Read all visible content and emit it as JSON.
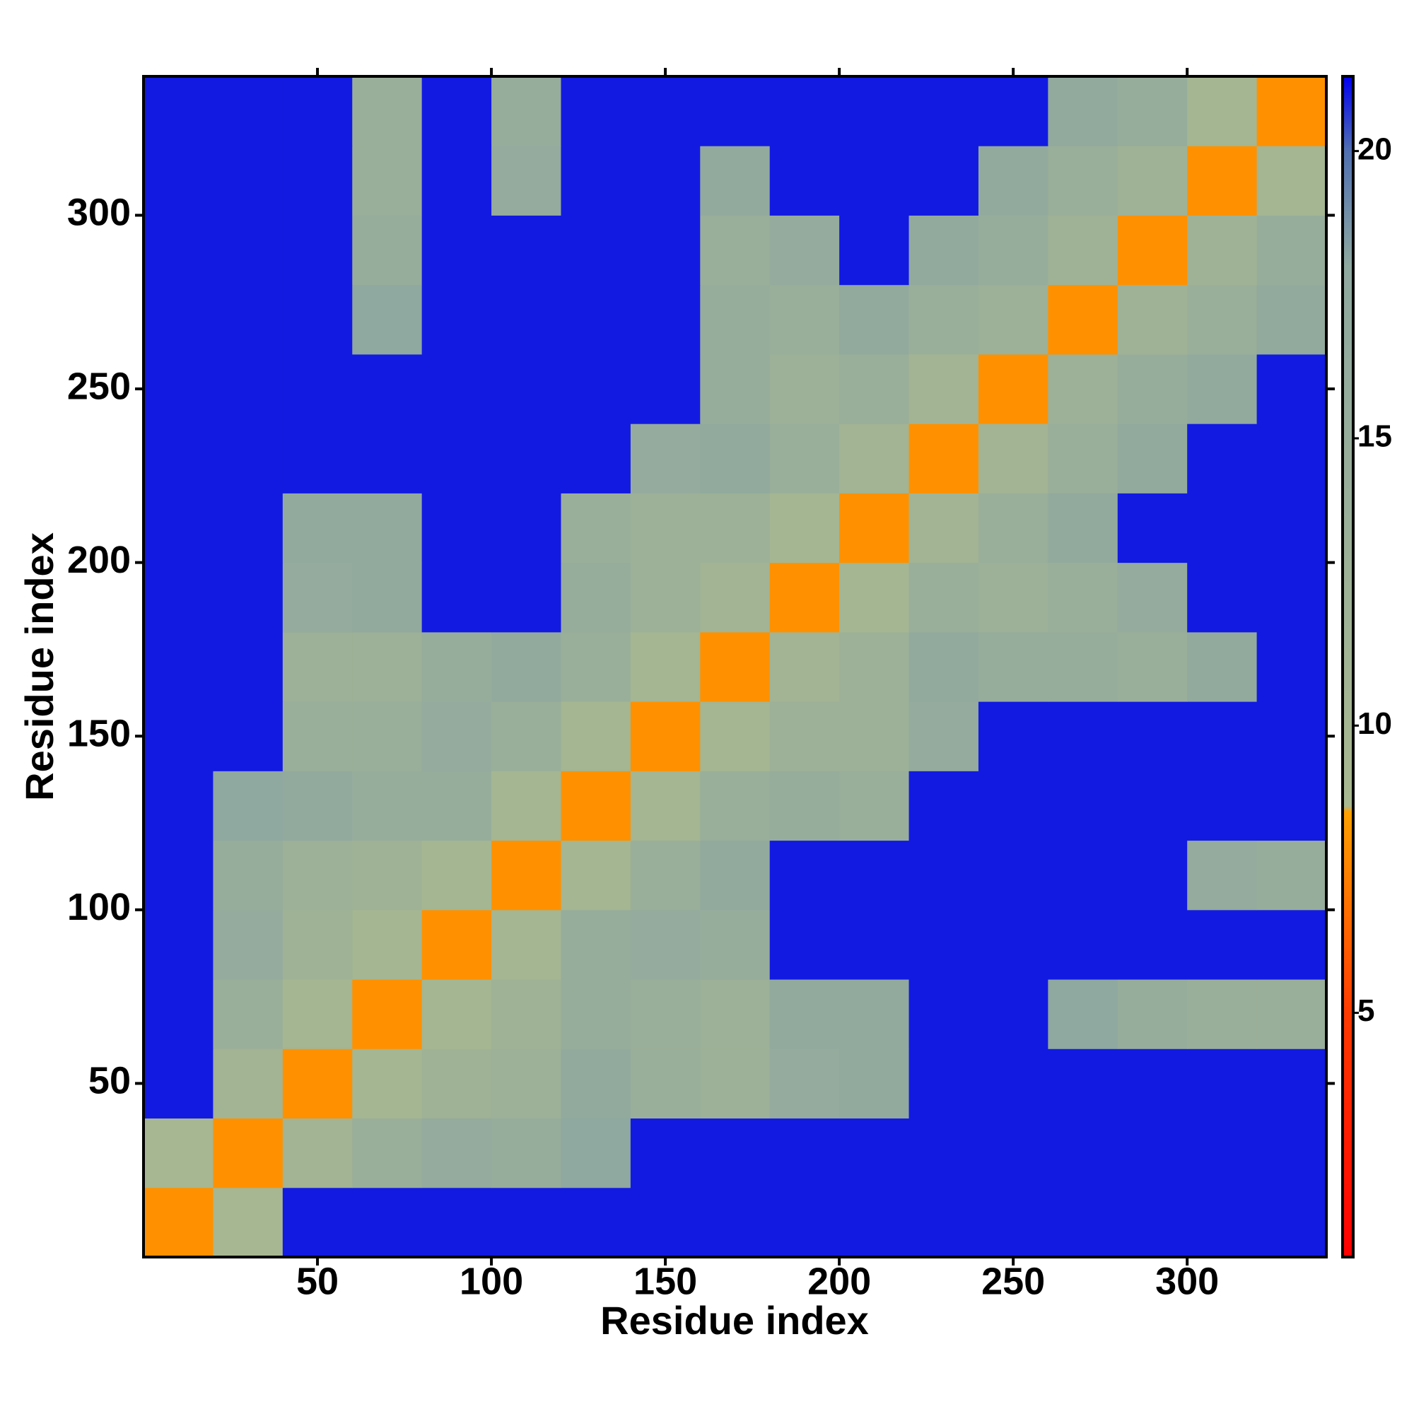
{
  "chart_data": {
    "type": "heatmap",
    "x_label": "Residue index",
    "y_label": "Residue index",
    "x_edges": [
      0,
      20,
      40,
      60,
      80,
      100,
      120,
      140,
      160,
      180,
      200,
      220,
      240,
      260,
      280,
      300,
      320,
      340
    ],
    "y_edges": [
      0,
      20,
      40,
      60,
      80,
      100,
      120,
      140,
      160,
      180,
      200,
      220,
      240,
      260,
      280,
      300,
      320,
      340
    ],
    "z": [
      [
        8,
        9,
        21,
        21,
        21,
        21,
        21,
        21,
        21,
        21,
        21,
        21,
        21,
        21,
        21,
        21,
        21
      ],
      [
        9,
        8,
        11,
        14,
        16,
        15,
        18,
        21,
        21,
        21,
        21,
        21,
        21,
        21,
        21,
        21,
        21
      ],
      [
        21,
        11,
        8,
        10,
        12,
        13,
        17,
        14,
        13,
        16,
        17,
        21,
        21,
        21,
        21,
        21,
        21
      ],
      [
        21,
        14,
        10,
        8,
        10,
        12,
        15,
        14,
        13,
        17,
        17,
        21,
        21,
        18,
        15,
        14,
        14
      ],
      [
        21,
        16,
        12,
        10,
        8,
        10,
        15,
        16,
        15,
        21,
        21,
        21,
        21,
        21,
        21,
        21,
        21
      ],
      [
        21,
        15,
        13,
        12,
        10,
        8,
        10,
        14,
        17,
        21,
        21,
        21,
        21,
        21,
        21,
        16,
        15
      ],
      [
        21,
        18,
        17,
        15,
        15,
        10,
        8,
        10,
        14,
        15,
        14,
        21,
        21,
        21,
        21,
        21,
        21
      ],
      [
        21,
        21,
        14,
        14,
        16,
        14,
        10,
        8,
        10,
        13,
        13,
        16,
        21,
        21,
        21,
        21,
        21
      ],
      [
        21,
        21,
        13,
        13,
        15,
        17,
        14,
        10,
        8,
        11,
        13,
        17,
        15,
        15,
        14,
        17,
        21
      ],
      [
        21,
        21,
        16,
        17,
        21,
        21,
        15,
        13,
        11,
        8,
        10,
        14,
        13,
        14,
        16,
        21,
        21
      ],
      [
        21,
        21,
        17,
        17,
        21,
        21,
        14,
        13,
        13,
        10,
        8,
        11,
        14,
        17,
        21,
        21,
        21
      ],
      [
        21,
        21,
        21,
        21,
        21,
        21,
        21,
        16,
        17,
        14,
        11,
        8,
        11,
        14,
        17,
        21,
        21
      ],
      [
        21,
        21,
        21,
        21,
        21,
        21,
        21,
        21,
        15,
        13,
        14,
        11,
        8,
        13,
        15,
        17,
        21
      ],
      [
        21,
        21,
        21,
        18,
        21,
        21,
        21,
        21,
        15,
        14,
        17,
        14,
        13,
        8,
        12,
        14,
        17
      ],
      [
        21,
        21,
        21,
        15,
        21,
        21,
        21,
        21,
        14,
        16,
        21,
        17,
        15,
        12,
        8,
        12,
        15
      ],
      [
        21,
        21,
        21,
        14,
        21,
        16,
        21,
        21,
        17,
        21,
        21,
        21,
        17,
        14,
        12,
        8,
        10
      ],
      [
        21,
        21,
        21,
        14,
        21,
        15,
        21,
        21,
        21,
        21,
        21,
        21,
        21,
        17,
        15,
        10,
        8
      ]
    ],
    "xlim": [
      0,
      340
    ],
    "ylim": [
      0,
      340
    ],
    "xticks": [
      50,
      100,
      150,
      200,
      250,
      300
    ],
    "yticks": [
      50,
      100,
      150,
      200,
      250,
      300
    ],
    "clim": [
      0.75,
      21.3
    ],
    "cticks": [
      5,
      10,
      15,
      20
    ],
    "colorscale": [
      {
        "value": 0.75,
        "color": "#ff0000"
      },
      {
        "value": 5,
        "color": "#ff3a00"
      },
      {
        "value": 8.5,
        "color": "#ffa000"
      },
      {
        "value": 8.6,
        "color": "#a8b890"
      },
      {
        "value": 18,
        "color": "#8fa8a0"
      },
      {
        "value": 20,
        "color": "#5070b0"
      },
      {
        "value": 21.3,
        "color": "#0000f0"
      }
    ]
  }
}
